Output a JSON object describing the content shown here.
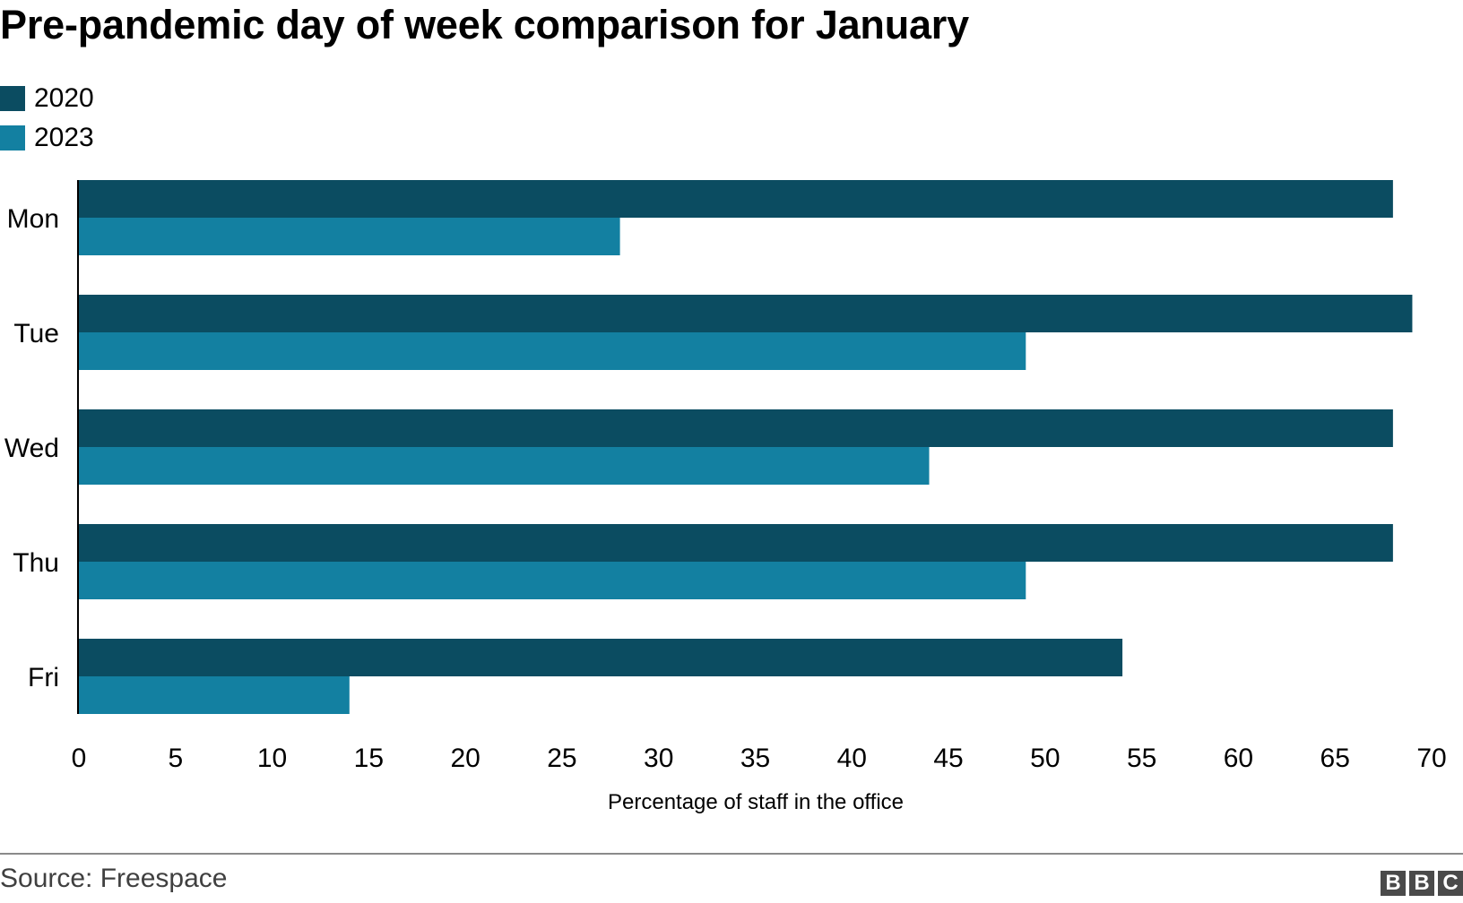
{
  "chart_data": {
    "type": "bar",
    "orientation": "horizontal",
    "title": "Pre-pandemic day of week comparison for January",
    "categories": [
      "Mon",
      "Tue",
      "Wed",
      "Thu",
      "Fri"
    ],
    "series": [
      {
        "name": "2020",
        "color": "#0b4c61",
        "values": [
          68,
          69,
          68,
          68,
          54
        ]
      },
      {
        "name": "2023",
        "color": "#1380a1",
        "values": [
          28,
          49,
          44,
          49,
          14
        ]
      }
    ],
    "xlabel": "Percentage of staff in the office",
    "xlim": [
      0,
      70
    ],
    "xticks": [
      0,
      5,
      10,
      15,
      20,
      25,
      30,
      35,
      40,
      45,
      50,
      55,
      60,
      65,
      70
    ],
    "legend_position": "top-left",
    "grid": false
  },
  "footer": {
    "source": "Source: Freespace",
    "logo_letters": [
      "B",
      "B",
      "C"
    ]
  }
}
